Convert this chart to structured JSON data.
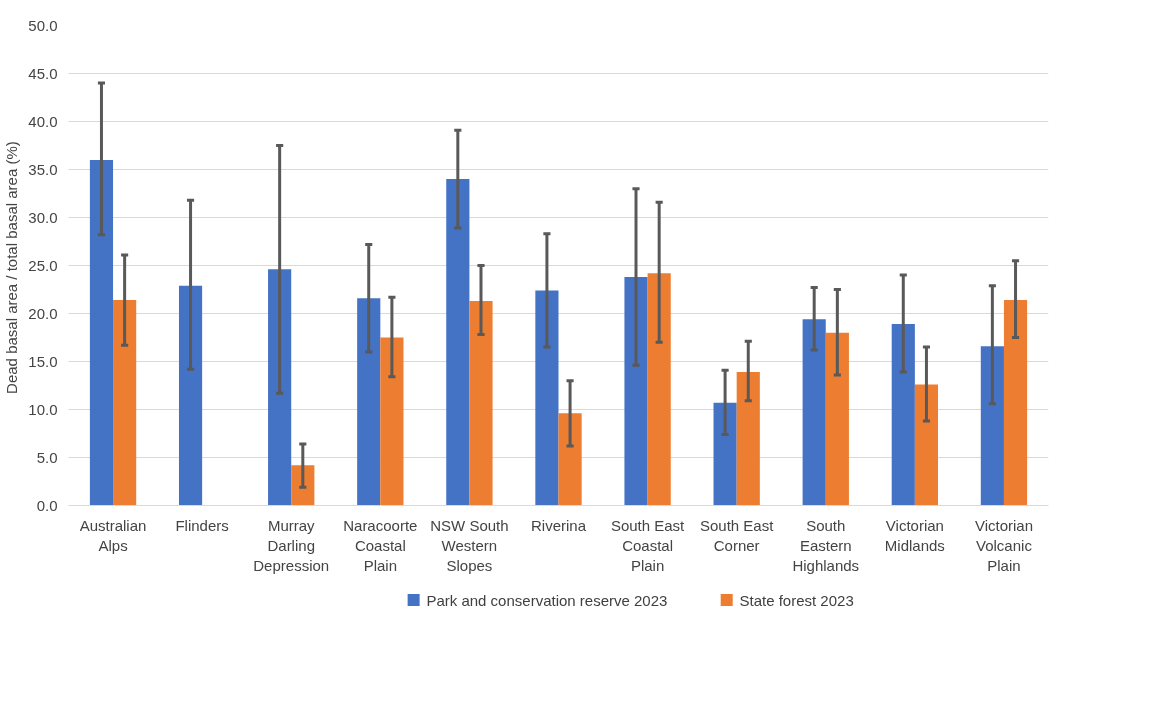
{
  "chart_data": {
    "type": "bar",
    "ylabel": "Dead basal area / total  basal area (%)",
    "categories": [
      "Australian Alps",
      "Flinders",
      "Murray Darling Depression",
      "Naracoorte Coastal Plain",
      "NSW South Western Slopes",
      "Riverina",
      "South East Coastal Plain",
      "South East Corner",
      "South Eastern Highlands",
      "Victorian Midlands",
      "Victorian Volcanic Plain"
    ],
    "series": [
      {
        "name": "Park and conservation reserve 2023",
        "color": "#4472c4",
        "values": [
          36.0,
          22.9,
          24.6,
          21.6,
          34.0,
          22.4,
          23.8,
          10.7,
          19.4,
          18.9,
          16.6
        ],
        "errors": [
          [
            28.2,
            44.0
          ],
          [
            14.2,
            31.8
          ],
          [
            11.7,
            37.5
          ],
          [
            16.0,
            27.2
          ],
          [
            28.9,
            39.1
          ],
          [
            16.5,
            28.3
          ],
          [
            14.6,
            33.0
          ],
          [
            7.4,
            14.1
          ],
          [
            16.2,
            22.7
          ],
          [
            13.9,
            24.0
          ],
          [
            10.6,
            22.9
          ]
        ]
      },
      {
        "name": "State forest 2023",
        "color": "#ed7d31",
        "values": [
          21.4,
          null,
          4.2,
          17.5,
          21.3,
          9.6,
          24.2,
          13.9,
          18.0,
          12.6,
          21.4
        ],
        "errors": [
          [
            16.7,
            26.1
          ],
          null,
          [
            1.9,
            6.4
          ],
          [
            13.4,
            21.7
          ],
          [
            17.8,
            25.0
          ],
          [
            6.2,
            13.0
          ],
          [
            17.0,
            31.6
          ],
          [
            10.9,
            17.1
          ],
          [
            13.6,
            22.5
          ],
          [
            8.8,
            16.5
          ],
          [
            17.5,
            25.5
          ]
        ]
      }
    ],
    "ylim": [
      0,
      50
    ],
    "yticks": [
      {
        "value": 0,
        "label": "0.0"
      },
      {
        "value": 5,
        "label": "5.0"
      },
      {
        "value": 10,
        "label": "10.0"
      },
      {
        "value": 15,
        "label": "15.0"
      },
      {
        "value": 20,
        "label": "20.0"
      },
      {
        "value": 25,
        "label": "25.0"
      },
      {
        "value": 30,
        "label": "30.0"
      },
      {
        "value": 35,
        "label": "35.0"
      },
      {
        "value": 40,
        "label": "40.0"
      },
      {
        "value": 45,
        "label": "45.0"
      },
      {
        "value": 50,
        "label": "50.0"
      }
    ],
    "grid": "y",
    "legend": "bottom"
  }
}
